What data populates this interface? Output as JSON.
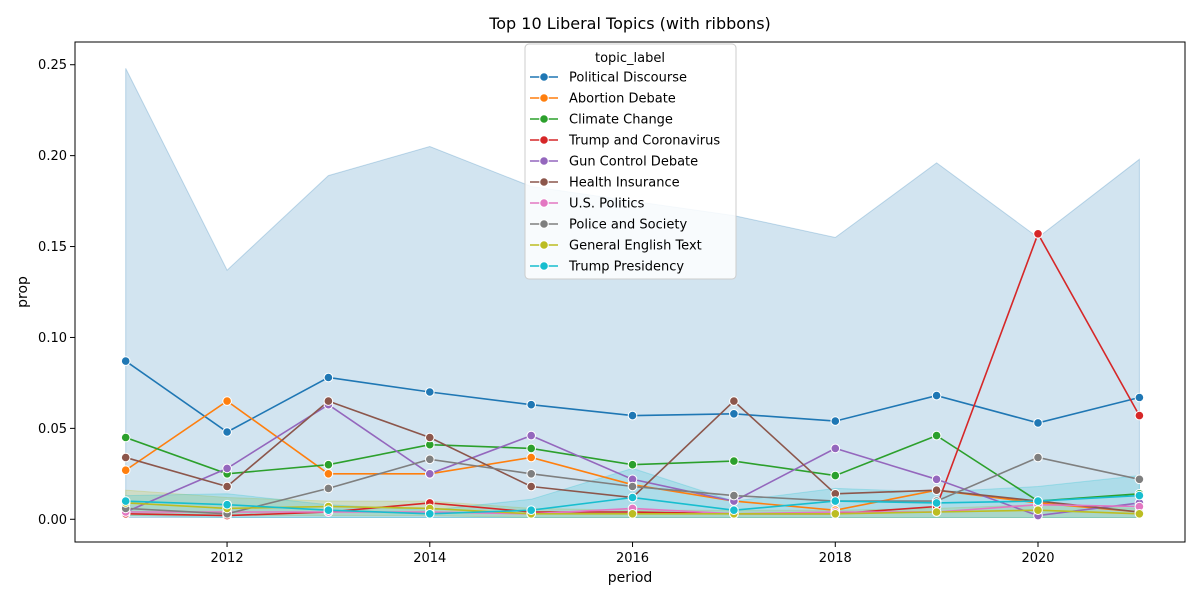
{
  "chart_data": {
    "type": "line",
    "title": "Top 10 Liberal Topics (with ribbons)",
    "xlabel": "period",
    "ylabel": "prop",
    "xlim": [
      2010.5,
      2021.45
    ],
    "ylim": [
      -0.0125,
      0.2625
    ],
    "x_ticks": [
      2012,
      2014,
      2016,
      2018,
      2020
    ],
    "y_ticks": [
      0.0,
      0.05,
      0.1,
      0.15,
      0.2,
      0.25
    ],
    "y_tick_labels": [
      "0.00",
      "0.05",
      "0.10",
      "0.15",
      "0.20",
      "0.25"
    ],
    "grid": false,
    "legend": {
      "title": "topic_label",
      "placement": "top-center"
    },
    "x": [
      2011,
      2012,
      2013,
      2014,
      2015,
      2016,
      2017,
      2018,
      2019,
      2020,
      2021
    ],
    "series": [
      {
        "name": "Political Discourse",
        "color": "#1f77b4",
        "values": [
          0.087,
          0.048,
          0.078,
          0.07,
          0.063,
          0.057,
          0.058,
          0.054,
          0.068,
          0.053,
          0.067
        ],
        "ribbon_upper": [
          0.248,
          0.137,
          0.189,
          0.205,
          0.183,
          0.175,
          0.167,
          0.155,
          0.196,
          0.155,
          0.198
        ],
        "ribbon_lower": [
          0.001,
          0.001,
          0.001,
          0.001,
          0.001,
          0.001,
          0.001,
          0.001,
          0.001,
          0.001,
          0.001
        ]
      },
      {
        "name": "Abortion Debate",
        "color": "#ff7f0e",
        "values": [
          0.027,
          0.065,
          0.025,
          0.025,
          0.034,
          0.019,
          0.01,
          0.005,
          0.016,
          0.009,
          0.004
        ]
      },
      {
        "name": "Climate Change",
        "color": "#2ca02c",
        "values": [
          0.045,
          0.025,
          0.03,
          0.041,
          0.039,
          0.03,
          0.032,
          0.024,
          0.046,
          0.01,
          0.014
        ]
      },
      {
        "name": "Trump and Coronavirus",
        "color": "#d62728",
        "values": [
          0.003,
          0.002,
          0.004,
          0.009,
          0.004,
          0.004,
          0.003,
          0.003,
          0.007,
          0.157,
          0.057
        ]
      },
      {
        "name": "Gun Control Debate",
        "color": "#9467bd",
        "values": [
          0.004,
          0.028,
          0.063,
          0.025,
          0.046,
          0.022,
          0.01,
          0.039,
          0.022,
          0.002,
          0.009
        ]
      },
      {
        "name": "Health Insurance",
        "color": "#8c564b",
        "values": [
          0.034,
          0.018,
          0.065,
          0.045,
          0.018,
          0.012,
          0.065,
          0.014,
          0.016,
          0.01,
          0.004
        ]
      },
      {
        "name": "U.S. Politics",
        "color": "#e377c2",
        "values": [
          0.004,
          0.004,
          0.004,
          0.004,
          0.003,
          0.006,
          0.003,
          0.004,
          0.004,
          0.008,
          0.007
        ]
      },
      {
        "name": "Police and Society",
        "color": "#7f7f7f",
        "values": [
          0.006,
          0.003,
          0.017,
          0.033,
          0.025,
          0.018,
          0.013,
          0.01,
          0.01,
          0.034,
          0.022
        ]
      },
      {
        "name": "General English Text",
        "color": "#bcbd22",
        "values": [
          0.009,
          0.006,
          0.007,
          0.006,
          0.003,
          0.003,
          0.003,
          0.003,
          0.004,
          0.005,
          0.003
        ],
        "ribbon_upper": [
          0.016,
          0.012,
          0.01,
          0.01,
          0.006,
          0.005,
          0.005,
          0.005,
          0.006,
          0.008,
          0.006
        ],
        "ribbon_lower": [
          0.002,
          0.002,
          0.002,
          0.002,
          0.001,
          0.001,
          0.001,
          0.001,
          0.001,
          0.001,
          0.001
        ]
      },
      {
        "name": "Trump Presidency",
        "color": "#17becf",
        "values": [
          0.01,
          0.008,
          0.005,
          0.003,
          0.005,
          0.012,
          0.005,
          0.01,
          0.009,
          0.01,
          0.013
        ],
        "ribbon_upper": [
          0.013,
          0.014,
          0.008,
          0.005,
          0.011,
          0.028,
          0.01,
          0.017,
          0.015,
          0.018,
          0.024
        ],
        "ribbon_lower": [
          0.002,
          0.001,
          0.001,
          0.001,
          0.001,
          0.001,
          0.001,
          0.001,
          0.001,
          0.001,
          0.001
        ]
      }
    ]
  }
}
